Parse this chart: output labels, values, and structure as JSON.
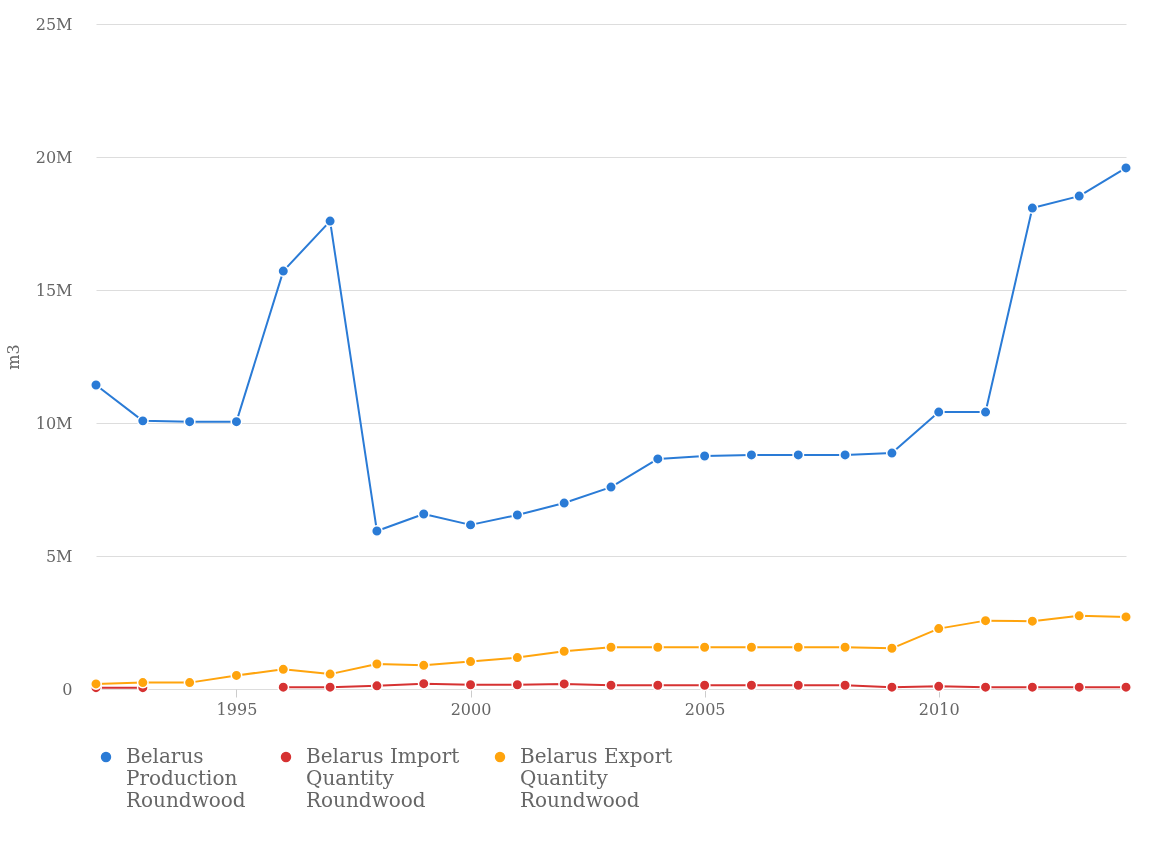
{
  "chart_data": {
    "type": "line",
    "ylabel": "m3",
    "x": [
      1992,
      1993,
      1994,
      1995,
      1996,
      1997,
      1998,
      1999,
      2000,
      2001,
      2002,
      2003,
      2004,
      2005,
      2006,
      2007,
      2008,
      2009,
      2010,
      2011,
      2012,
      2013,
      2014
    ],
    "series": [
      {
        "name": "Belarus Production Roundwood",
        "color": "#2a7bd6",
        "values": [
          11430000,
          10080000,
          10050000,
          10050000,
          15710000,
          17590000,
          5940000,
          6580000,
          6170000,
          6540000,
          6990000,
          7590000,
          8650000,
          8760000,
          8800000,
          8800000,
          8800000,
          8870000,
          10410000,
          10410000,
          18080000,
          18530000,
          19590000
        ]
      },
      {
        "name": "Belarus Import Quantity Roundwood",
        "color": "#d63232",
        "values": [
          50000,
          50000,
          null,
          null,
          70000,
          70000,
          120000,
          200000,
          160000,
          160000,
          190000,
          140000,
          140000,
          140000,
          140000,
          140000,
          140000,
          70000,
          100000,
          70000,
          70000,
          70000,
          70000
        ]
      },
      {
        "name": "Belarus Export Quantity Roundwood",
        "color": "#ffa40d",
        "values": [
          190000,
          240000,
          240000,
          510000,
          740000,
          560000,
          940000,
          890000,
          1030000,
          1180000,
          1420000,
          1570000,
          1570000,
          1570000,
          1570000,
          1570000,
          1570000,
          1530000,
          2270000,
          2570000,
          2550000,
          2750000,
          2710000
        ]
      }
    ],
    "xlim": [
      1992,
      2014
    ],
    "xticks": [
      1995,
      2000,
      2005,
      2010
    ],
    "ylim": [
      0,
      25000000
    ],
    "yticks": [
      {
        "value": 0,
        "label": "0"
      },
      {
        "value": 5000000,
        "label": "5M"
      },
      {
        "value": 10000000,
        "label": "10M"
      },
      {
        "value": 15000000,
        "label": "15M"
      },
      {
        "value": 20000000,
        "label": "20M"
      },
      {
        "value": 25000000,
        "label": "25M"
      }
    ],
    "grid": "y",
    "legend": "bottom",
    "marker": "circle",
    "line_style": "solid"
  }
}
